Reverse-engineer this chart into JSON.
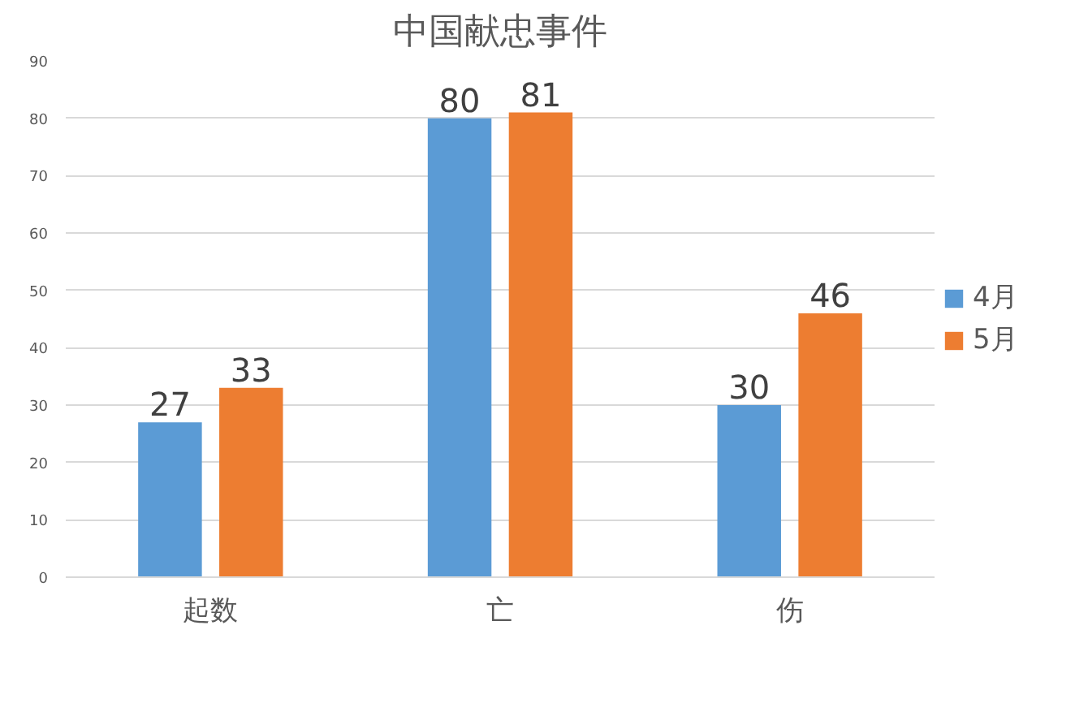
{
  "chart_data": {
    "type": "bar",
    "title": "中国献忠事件",
    "categories": [
      "起数",
      "亡",
      "伤"
    ],
    "series": [
      {
        "name": "4月",
        "color": "#5b9bd5",
        "values": [
          27,
          80,
          30
        ]
      },
      {
        "name": "5月",
        "color": "#ed7d31",
        "values": [
          33,
          81,
          46
        ]
      }
    ],
    "ylim": [
      0,
      90
    ],
    "yticks": [
      0,
      10,
      20,
      30,
      40,
      50,
      60,
      70,
      80,
      90
    ],
    "grid": "y",
    "legend": "right",
    "data_labels": true
  }
}
